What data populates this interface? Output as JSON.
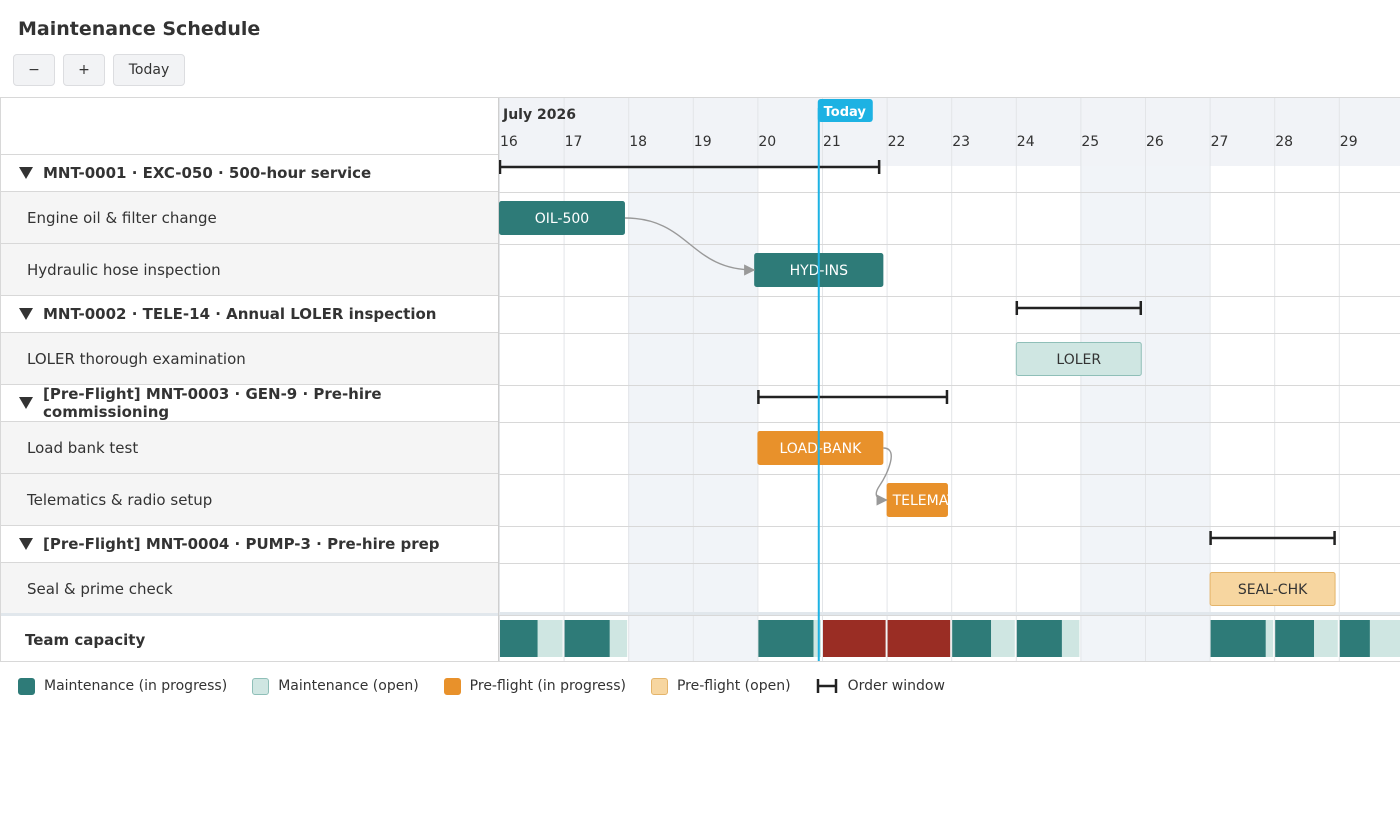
{
  "title": "Maintenance Schedule",
  "toolbar": {
    "zoom_out": "−",
    "zoom_in": "+",
    "today": "Today"
  },
  "timeline": {
    "month": "July 2026",
    "days": [
      "16",
      "17",
      "18",
      "19",
      "20",
      "21",
      "22",
      "23",
      "24",
      "25",
      "26",
      "27",
      "28",
      "29"
    ],
    "weekend_days": [
      "18",
      "19",
      "25",
      "26"
    ],
    "today_label": "Today",
    "today_day": 20.95
  },
  "rows": [
    {
      "type": "group",
      "label": "MNT-0001 · EXC-050 · 500-hour service",
      "window": [
        16,
        21.9
      ]
    },
    {
      "type": "task",
      "label": "Engine oil & filter change",
      "bar": {
        "code": "OIL-500",
        "start": 16,
        "end": 17.95,
        "kind": "maint-progress"
      }
    },
    {
      "type": "task",
      "label": "Hydraulic hose inspection",
      "bar": {
        "code": "HYD-INS",
        "start": 19.95,
        "end": 21.95,
        "kind": "maint-progress"
      }
    },
    {
      "type": "group",
      "label": "MNT-0002 · TELE-14 · Annual LOLER inspection",
      "window": [
        24,
        25.95
      ]
    },
    {
      "type": "task",
      "label": "LOLER thorough examination",
      "bar": {
        "code": "LOLER",
        "start": 24,
        "end": 25.95,
        "kind": "maint-open"
      }
    },
    {
      "type": "group",
      "label": "[Pre-Flight] MNT-0003 · GEN-9 · Pre-hire commissioning",
      "window": [
        20,
        22.95
      ]
    },
    {
      "type": "task",
      "label": "Load bank test",
      "bar": {
        "code": "LOAD-BANK",
        "start": 20,
        "end": 21.95,
        "kind": "pre-progress"
      }
    },
    {
      "type": "task",
      "label": "Telematics & radio setup",
      "bar": {
        "code": "TELEMATICS",
        "start": 22,
        "end": 22.95,
        "kind": "pre-progress"
      }
    },
    {
      "type": "group",
      "label": "[Pre-Flight] MNT-0004 · PUMP-3 · Pre-hire prep",
      "window": [
        27,
        28.95
      ]
    },
    {
      "type": "task",
      "label": "Seal & prime check",
      "bar": {
        "code": "SEAL-CHK",
        "start": 27,
        "end": 28.95,
        "kind": "pre-open"
      }
    }
  ],
  "dependencies": [
    {
      "from": "OIL-500",
      "to": "HYD-INS"
    },
    {
      "from": "LOAD-BANK",
      "to": "TELEMATICS"
    }
  ],
  "capacity": {
    "label": "Team capacity",
    "days": [
      {
        "day": 16,
        "load": 0.6,
        "status": "ok"
      },
      {
        "day": 17,
        "load": 0.72,
        "status": "ok"
      },
      {
        "day": 20,
        "load": 0.88,
        "status": "ok"
      },
      {
        "day": 21,
        "load": 1.0,
        "status": "over"
      },
      {
        "day": 22,
        "load": 1.0,
        "status": "over"
      },
      {
        "day": 23,
        "load": 0.62,
        "status": "ok"
      },
      {
        "day": 24,
        "load": 0.72,
        "status": "ok"
      },
      {
        "day": 27,
        "load": 0.88,
        "status": "ok"
      },
      {
        "day": 28,
        "load": 0.62,
        "status": "ok"
      },
      {
        "day": 29,
        "load": 0.48,
        "status": "ok"
      }
    ]
  },
  "colors": {
    "maint_progress": "#2e7b78",
    "maint_open": "#cfe6e2",
    "pre_progress": "#e8912b",
    "pre_open": "#f7d6a0",
    "over": "#9a2d24",
    "today": "#1db2e3",
    "weekend": "#f1f4f8"
  },
  "legend": [
    {
      "label": "Maintenance (in progress)",
      "kind": "maint-progress"
    },
    {
      "label": "Maintenance (open)",
      "kind": "maint-open"
    },
    {
      "label": "Pre-flight (in progress)",
      "kind": "pre-progress"
    },
    {
      "label": "Pre-flight (open)",
      "kind": "pre-open"
    },
    {
      "label": "Order window",
      "kind": "window"
    }
  ]
}
